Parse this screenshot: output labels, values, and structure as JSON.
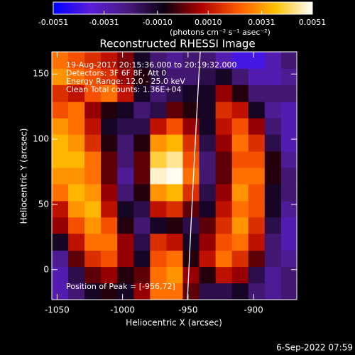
{
  "chart_data": {
    "type": "heatmap",
    "title": "Reconstructed RHESSI Image",
    "x_label": "Heliocentric X (arcsec)",
    "y_label": "Heliocentric Y (arcsec)",
    "annotations": [
      "19-Aug-2017 20:15:36.000 to 20:19:32.000",
      "Detectors: 3F 6F 8F, Att 0",
      "Energy Range: 12.0 - 25.0 keV",
      "Clean     Total counts: 1.36E+04",
      "Position of Peak = [-956,72]"
    ],
    "footer": "6-Sep-2022 07:59",
    "xlim": [
      -1054,
      -867
    ],
    "ylim": [
      -23,
      167
    ],
    "xticks": [
      -1050,
      -1000,
      -950,
      -900
    ],
    "yticks": [
      0,
      50,
      100,
      150
    ],
    "x": [
      -1048,
      -1035,
      -1023,
      -1010,
      -998,
      -985,
      -973,
      -960,
      -948,
      -935,
      -923,
      -910,
      -898,
      -885,
      -873
    ],
    "y": [
      160,
      148,
      135,
      122,
      110,
      97,
      84,
      72,
      59,
      46,
      34,
      21,
      8,
      -4,
      -17
    ],
    "values": [
      [
        0.0025,
        0.002,
        0.0015,
        0.001,
        0.0003,
        -0.001,
        -0.002,
        -0.0025,
        -0.002,
        -0.002,
        -0.003,
        -0.004,
        -0.004,
        -0.003,
        -0.002
      ],
      [
        0.003,
        0.0025,
        0.002,
        0.0015,
        0.0005,
        -0.0005,
        -0.0015,
        -0.002,
        -0.002,
        -0.0015,
        -0.001,
        -0.002,
        -0.003,
        -0.003,
        -0.0025
      ],
      [
        0.0015,
        0.001,
        0.002,
        0.0025,
        0.001,
        -0.001,
        -0.002,
        -0.0015,
        -0.001,
        -0.001,
        0.0005,
        -0.0005,
        -0.002,
        -0.002,
        -0.002
      ],
      [
        0.002,
        0.0025,
        0.0005,
        -0.0005,
        -0.001,
        -0.002,
        -0.0015,
        0,
        -0.0005,
        -0.001,
        0.0015,
        0.001,
        -0.001,
        -0.0025,
        -0.003
      ],
      [
        0.003,
        0.0025,
        0.001,
        -0.001,
        -0.0015,
        -0.0015,
        0.001,
        0.002,
        0.0005,
        -0.001,
        0.001,
        0.002,
        0.0005,
        -0.002,
        -0.003
      ],
      [
        0.0035,
        0.003,
        0.0015,
        -0.0005,
        -0.002,
        -0.0005,
        0.003,
        0.0035,
        0.0015,
        -0.0015,
        0.0005,
        0.0025,
        0.0015,
        -0.0015,
        -0.003
      ],
      [
        0.0035,
        0.0035,
        0.0025,
        0,
        -0.002,
        0,
        0.004,
        0.0045,
        0.002,
        -0.002,
        0,
        0.002,
        0.002,
        -0.0005,
        -0.0025
      ],
      [
        0.003,
        0.003,
        0.0025,
        0,
        -0.0025,
        0,
        0.0048,
        0.005,
        0.0025,
        -0.002,
        0,
        0.0025,
        0.0025,
        -0.0005,
        -0.002
      ],
      [
        0.0025,
        0.0035,
        0.003,
        0.0005,
        -0.002,
        -0.0005,
        0.003,
        0.0035,
        0.0015,
        -0.0015,
        0.0005,
        0.003,
        0.002,
        -0.001,
        -0.002
      ],
      [
        0.001,
        0.003,
        0.0035,
        0.001,
        -0.001,
        -0.0015,
        0.001,
        0.0015,
        0,
        -0.001,
        0.001,
        0.0025,
        0.002,
        -0.001,
        -0.0025
      ],
      [
        0.0005,
        0.002,
        0.003,
        0.002,
        -0.0005,
        -0.002,
        -0.001,
        -0.0005,
        -0.0015,
        0,
        0.0015,
        0.003,
        0.0015,
        -0.0015,
        -0.003
      ],
      [
        -0.001,
        0.001,
        0.0025,
        0.0025,
        0.0005,
        -0.0015,
        0.0015,
        0.001,
        -0.001,
        0.0005,
        0.002,
        0.0025,
        0.001,
        -0.002,
        -0.003
      ],
      [
        -0.0025,
        0,
        0.0015,
        0.002,
        0.0005,
        -0.001,
        0.002,
        0.0025,
        -0.0005,
        0.001,
        0.0025,
        0.0015,
        0,
        -0.002,
        -0.0025
      ],
      [
        -0.003,
        -0.0015,
        0,
        0.0005,
        -0.0005,
        0,
        0.0025,
        0.003,
        0.0005,
        -0.0005,
        0.001,
        0.0005,
        -0.0015,
        -0.0025,
        -0.002
      ],
      [
        -0.003,
        -0.002,
        -0.001,
        -0.0005,
        -0.001,
        0.0005,
        0.0025,
        0.0025,
        0,
        -0.0015,
        -0.0015,
        -0.001,
        -0.002,
        -0.0025,
        -0.002
      ]
    ],
    "colorbar": {
      "label": "(photons cm⁻² s⁻¹ asec⁻²)",
      "zlim": [
        -0.0051,
        0.0051
      ],
      "zticks": [
        -0.0051,
        -0.0031,
        {
          "value": -0.001,
          "label": "-0.0010"
        },
        {
          "value": 0.001,
          "label": "0.0010"
        },
        0.0031,
        0.0051
      ],
      "colors": [
        "#0000ff",
        "#5a1ed8",
        "#4a1a80",
        "#0a0010",
        "#b00000",
        "#ff5a00",
        "#ffc000",
        "#ffffff"
      ]
    }
  }
}
